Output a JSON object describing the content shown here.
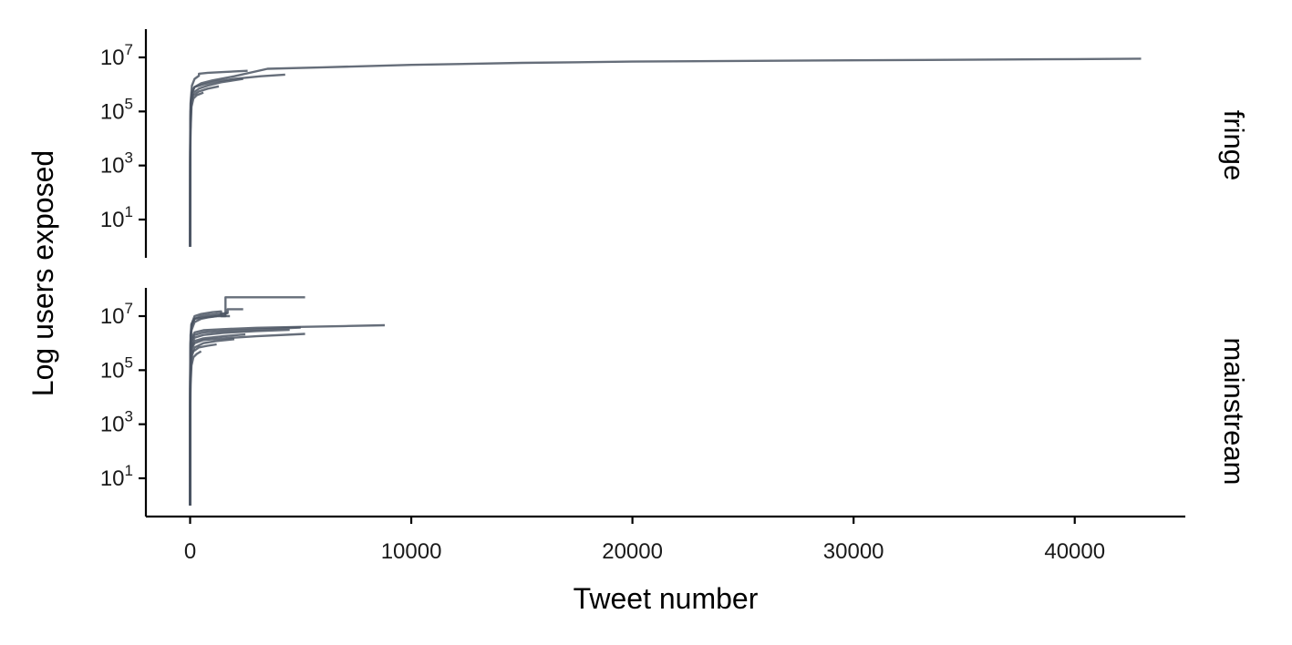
{
  "chart_data": {
    "type": "line",
    "xlabel": "Tweet number",
    "ylabel": "Log users exposed",
    "x_ticks": [
      "0",
      "10000",
      "20000",
      "30000",
      "40000"
    ],
    "x_tick_values": [
      0,
      10000,
      20000,
      30000,
      40000
    ],
    "xlim": [
      -2000,
      45000
    ],
    "y_scale": "log",
    "y_ticks": [
      {
        "value": 10,
        "base": "10",
        "exp": "1"
      },
      {
        "value": 1000,
        "base": "10",
        "exp": "3"
      },
      {
        "value": 100000,
        "base": "10",
        "exp": "5"
      },
      {
        "value": 10000000,
        "base": "10",
        "exp": "7"
      }
    ],
    "ylim": [
      0.6,
      100000000
    ],
    "line_color": "#4b5563",
    "facets": [
      {
        "label": "fringe",
        "series": [
          {
            "x": [
              0,
              5,
              10,
              30,
              80,
              200,
              500,
              1000,
              2000,
              3500,
              6000,
              10000,
              15000,
              20000,
              30000,
              40000,
              43000
            ],
            "y": [
              1,
              1500,
              40000,
              200000,
              500000,
              800000,
              1100000,
              1400000,
              2000000,
              3800000,
              4300000,
              5300000,
              6300000,
              7000000,
              7800000,
              8600000,
              9000000
            ]
          },
          {
            "x": [
              0,
              5,
              20,
              80,
              200,
              400,
              400,
              800,
              1600,
              2600
            ],
            "y": [
              1,
              10000,
              200000,
              900000,
              1600000,
              2100000,
              2500000,
              2700000,
              2900000,
              3200000
            ]
          },
          {
            "x": [
              0,
              5,
              20,
              80,
              200,
              600,
              1200,
              2000,
              3200,
              4300
            ],
            "y": [
              1,
              5000,
              100000,
              500000,
              800000,
              1000000,
              1300000,
              1600000,
              2000000,
              2300000
            ]
          },
          {
            "x": [
              0,
              5,
              20,
              60,
              150,
              400,
              800,
              1400,
              2400
            ],
            "y": [
              1,
              3000,
              60000,
              300000,
              500000,
              700000,
              900000,
              1200000,
              1600000
            ]
          },
          {
            "x": [
              0,
              5,
              20,
              60,
              150,
              400,
              800,
              1300
            ],
            "y": [
              1,
              2000,
              40000,
              250000,
              400000,
              550000,
              700000,
              850000
            ]
          },
          {
            "x": [
              0,
              5,
              20,
              60,
              150,
              300,
              600
            ],
            "y": [
              1,
              1000,
              20000,
              150000,
              300000,
              400000,
              500000
            ]
          }
        ]
      },
      {
        "label": "mainstream",
        "series": [
          {
            "x": [
              0,
              5,
              20,
              60,
              200,
              600,
              1200,
              1600,
              1600,
              5200
            ],
            "y": [
              1,
              100000,
              2000000,
              5000000,
              8000000,
              9000000,
              10000000,
              12000000,
              50000000,
              50000000
            ]
          },
          {
            "x": [
              0,
              5,
              20,
              60,
              200,
              500,
              1000,
              1400,
              1400,
              1800
            ],
            "y": [
              1,
              50000,
              1000000,
              5000000,
              10000000,
              12000000,
              14000000,
              15000000,
              10000000,
              10000000
            ]
          },
          {
            "x": [
              0,
              5,
              20,
              60,
              200,
              500,
              800,
              1200,
              1700
            ],
            "y": [
              1,
              40000,
              1000000,
              4000000,
              8000000,
              10000000,
              11000000,
              12000000,
              13000000
            ]
          },
          {
            "x": [
              0,
              5,
              20,
              60,
              200,
              500,
              800,
              1200,
              1600,
              1600,
              1700,
              1700,
              2400
            ],
            "y": [
              1,
              30000,
              800000,
              3000000,
              6000000,
              8000000,
              9000000,
              10000000,
              10000000,
              13000000,
              13000000,
              18000000,
              18000000
            ]
          },
          {
            "x": [
              0,
              5,
              20,
              60,
              200,
              600,
              1500,
              3000,
              5000,
              7000,
              8800
            ],
            "y": [
              1,
              20000,
              500000,
              1500000,
              2500000,
              3000000,
              3300000,
              3700000,
              4000000,
              4300000,
              4600000
            ]
          },
          {
            "x": [
              0,
              5,
              20,
              60,
              200,
              600,
              1500,
              3000,
              5000
            ],
            "y": [
              1,
              20000,
              400000,
              1200000,
              2000000,
              2500000,
              2800000,
              3200000,
              3800000
            ]
          },
          {
            "x": [
              0,
              5,
              20,
              60,
              200,
              600,
              1500,
              3000,
              5200
            ],
            "y": [
              1,
              10000,
              200000,
              600000,
              1000000,
              1300000,
              1500000,
              1800000,
              2200000
            ]
          },
          {
            "x": [
              0,
              5,
              20,
              60,
              200,
              600,
              1500,
              2500
            ],
            "y": [
              1,
              10000,
              200000,
              700000,
              1200000,
              1500000,
              1800000,
              2100000
            ]
          },
          {
            "x": [
              0,
              5,
              20,
              60,
              200,
              600,
              1200,
              2000
            ],
            "y": [
              1,
              5000,
              100000,
              400000,
              700000,
              1000000,
              1200000,
              1400000
            ]
          },
          {
            "x": [
              0,
              5,
              20,
              60,
              150,
              400,
              800,
              1200
            ],
            "y": [
              1,
              3000,
              60000,
              300000,
              500000,
              700000,
              800000,
              900000
            ]
          },
          {
            "x": [
              0,
              5,
              20,
              60,
              150,
              300,
              500
            ],
            "y": [
              1,
              1000,
              30000,
              150000,
              300000,
              400000,
              500000
            ]
          },
          {
            "x": [
              0,
              5,
              20,
              60,
              200,
              600,
              1500,
              3000,
              4500
            ],
            "y": [
              1,
              15000,
              300000,
              900000,
              1600000,
              2000000,
              2400000,
              2800000,
              3100000
            ]
          }
        ]
      }
    ]
  }
}
